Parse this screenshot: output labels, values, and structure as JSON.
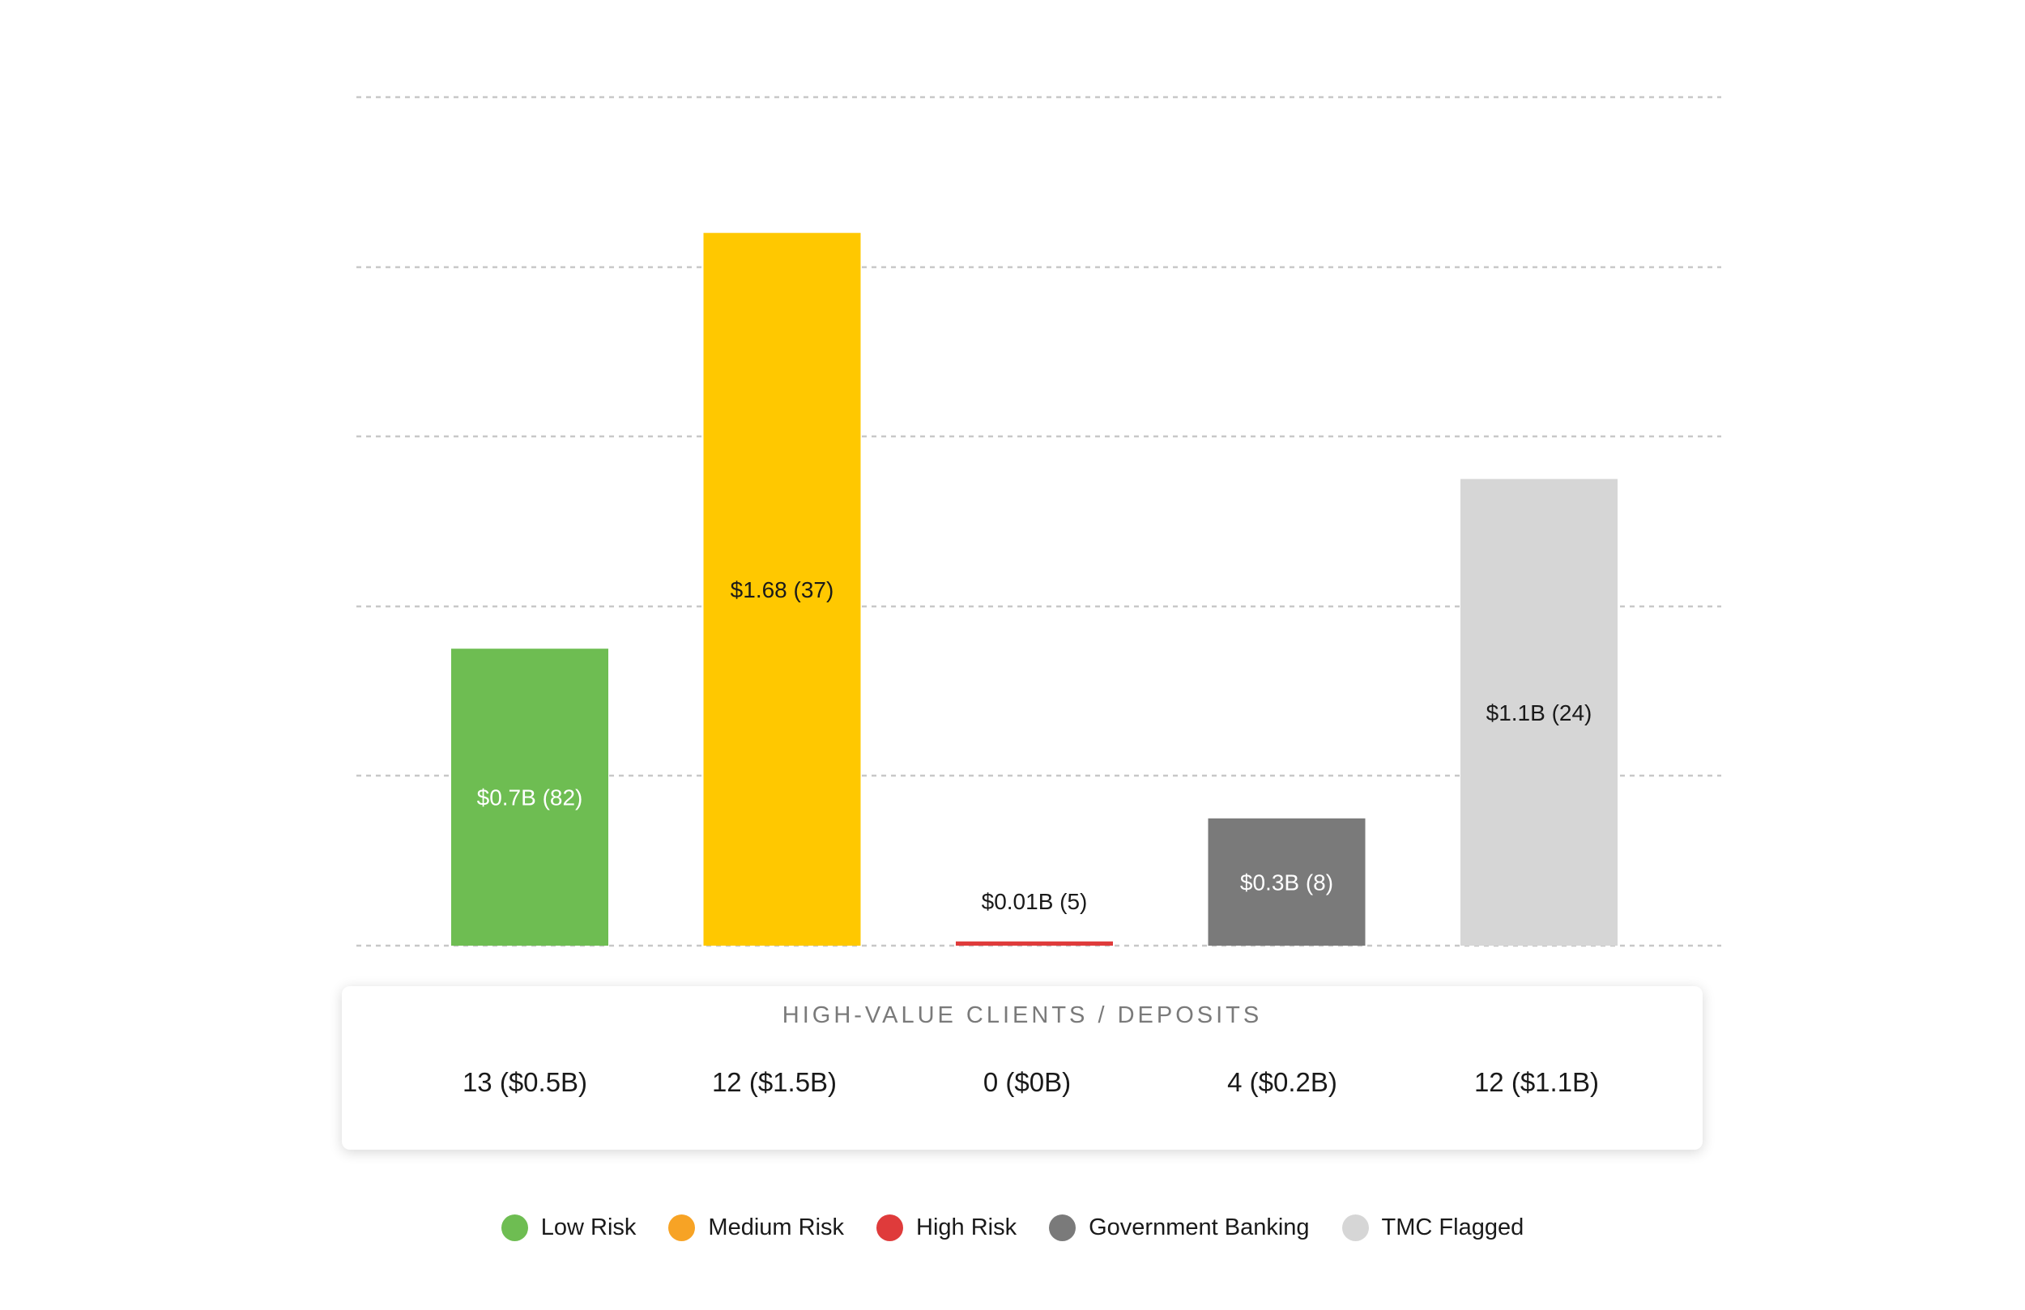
{
  "chart_data": {
    "type": "bar",
    "categories": [
      "Low Risk",
      "Medium Risk",
      "High Risk",
      "Government Banking",
      "TMC Flagged"
    ],
    "values": [
      0.7,
      1.68,
      0.01,
      0.3,
      1.1
    ],
    "counts": [
      82,
      37,
      5,
      8,
      24
    ],
    "data_labels": [
      "$0.7B (82)",
      "$1.68 (37)",
      "$0.01B (5)",
      "$0.3B (8)",
      "$1.1B (24)"
    ],
    "colors": [
      "#6ebd52",
      "#ffc800",
      "#df3b3b",
      "#7a7a7a",
      "#d6d6d6"
    ],
    "label_colors": [
      "#ffffff",
      "#1a1a1a",
      "#1a1a1a",
      "#ffffff",
      "#1a1a1a"
    ],
    "ylim": [
      0,
      2.0
    ],
    "grid": "dashed horizontal",
    "legend_position": "bottom"
  },
  "summary": {
    "title": "HIGH-VALUE CLIENTS / DEPOSITS",
    "values": [
      "13 ($0.5B)",
      "12 ($1.5B)",
      "0 ($0B)",
      "4 ($0.2B)",
      "12 ($1.1B)"
    ]
  },
  "legend": {
    "items": [
      {
        "label": "Low Risk",
        "color": "#6ebd52"
      },
      {
        "label": "Medium Risk",
        "color": "#f7a325"
      },
      {
        "label": "High Risk",
        "color": "#df3b3b"
      },
      {
        "label": "Government Banking",
        "color": "#7a7a7a"
      },
      {
        "label": "TMC Flagged",
        "color": "#d6d6d6"
      }
    ]
  }
}
